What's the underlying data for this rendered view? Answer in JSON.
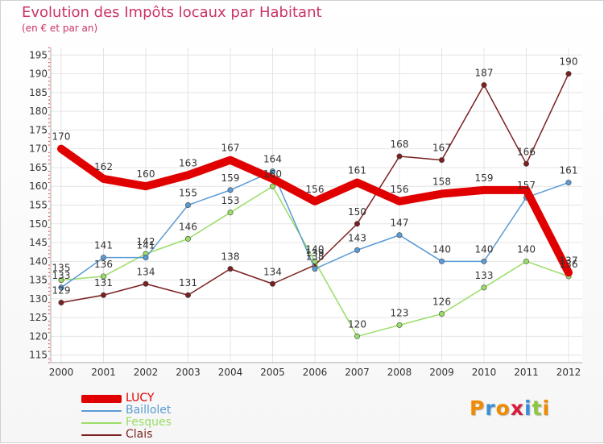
{
  "header": {
    "title": "Evolution des Impôts locaux par Habitant",
    "subtitle": "(en € et par an)"
  },
  "logo": {
    "text": "Proxiti",
    "letter_colors": [
      "#f08a00",
      "#3a8fd6",
      "#f08a00",
      "#d81b3c",
      "#3a8fd6",
      "#8dc63f",
      "#f08a00"
    ]
  },
  "chart_data": {
    "type": "line",
    "title": "Evolution des Impôts locaux par Habitant",
    "subtitle": "(en € et par an)",
    "xlabel": "",
    "ylabel": "",
    "categories": [
      "2000",
      "2001",
      "2002",
      "2003",
      "2004",
      "2005",
      "2006",
      "2007",
      "2008",
      "2009",
      "2010",
      "2011",
      "2012"
    ],
    "y_ticks": [
      115,
      120,
      125,
      130,
      135,
      140,
      145,
      150,
      155,
      160,
      165,
      170,
      175,
      180,
      185,
      190,
      195
    ],
    "ylim": [
      113,
      197
    ],
    "grid": true,
    "legend_position": "bottom-left",
    "series": [
      {
        "name": "LUCY",
        "color": "#e00000",
        "values": [
          170,
          162,
          160,
          163,
          167,
          162,
          156,
          161,
          156,
          158,
          159,
          159,
          137
        ],
        "labels": [
          "170",
          "162",
          "160",
          "163",
          "167",
          "",
          "156",
          "161",
          "156",
          "158",
          "159",
          "",
          "137"
        ]
      },
      {
        "name": "Baillolet",
        "color": "#5b9bd5",
        "values": [
          133,
          141,
          141,
          155,
          159,
          164,
          138,
          143,
          147,
          140,
          140,
          157,
          161
        ],
        "labels": [
          "133",
          "141",
          "141",
          "155",
          "159",
          "164",
          "138",
          "143",
          "147",
          "140",
          "140",
          "157",
          "161"
        ]
      },
      {
        "name": "Fesques",
        "color": "#99dd66",
        "values": [
          135,
          136,
          142,
          146,
          153,
          160,
          140,
          120,
          123,
          126,
          133,
          140,
          136
        ],
        "labels": [
          "135",
          "136",
          "142",
          "146",
          "153",
          "160",
          "140",
          "120",
          "123",
          "126",
          "133",
          "140",
          "136"
        ]
      },
      {
        "name": "Clais",
        "color": "#7b1f1f",
        "values": [
          129,
          131,
          134,
          131,
          138,
          134,
          139,
          150,
          168,
          167,
          187,
          166,
          190
        ],
        "labels": [
          "129",
          "131",
          "134",
          "131",
          "138",
          "134",
          "139",
          "150",
          "168",
          "167",
          "187",
          "166",
          "190"
        ]
      }
    ]
  }
}
